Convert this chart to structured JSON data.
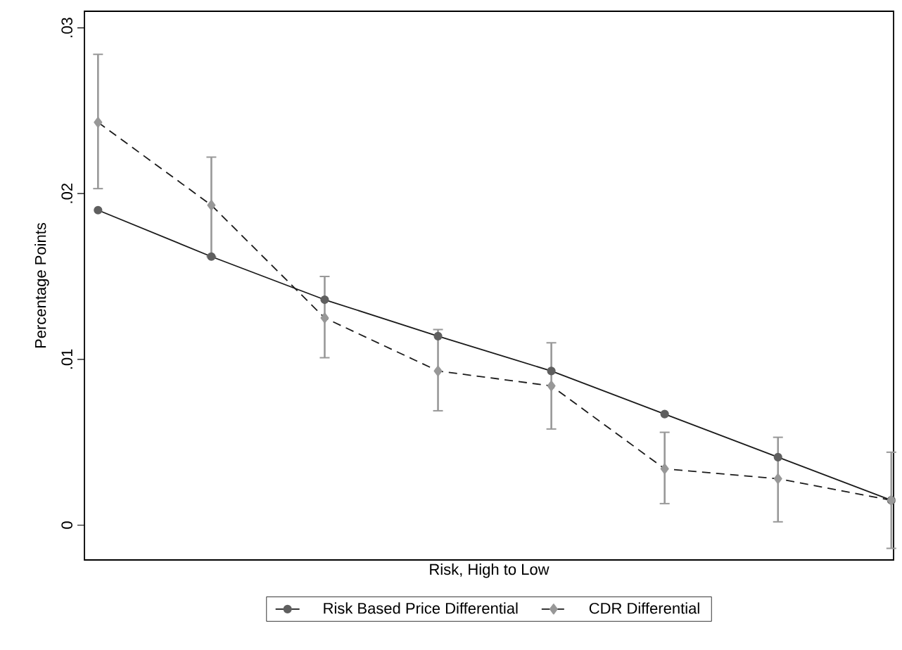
{
  "chart_data": {
    "type": "line",
    "xlabel": "Risk, High to Low",
    "ylabel": "Percentage Points",
    "categories": [
      null,
      null,
      null,
      null,
      null,
      null,
      null,
      null
    ],
    "ylim": [
      -0.0021,
      0.031
    ],
    "yticks": [
      {
        "value": 0,
        "label": "0"
      },
      {
        "value": 0.01,
        "label": ".01"
      },
      {
        "value": 0.02,
        "label": ".02"
      },
      {
        "value": 0.03,
        "label": ".03"
      }
    ],
    "grid": false,
    "legend": "bottom",
    "series": [
      {
        "name": "Risk Based Price Differential",
        "color": "#1a1a1a",
        "marker": "circle",
        "line_style": "solid",
        "values": [
          0.019,
          0.0162,
          0.0136,
          0.0114,
          0.0093,
          0.0067,
          0.0041,
          0.0015
        ]
      },
      {
        "name": "CDR Differential",
        "color": "#1a1a1a",
        "marker": "diamond",
        "line_style": "dashed",
        "values": [
          0.0243,
          0.0193,
          0.0125,
          0.0093,
          0.0084,
          0.0034,
          0.0028,
          0.0015
        ],
        "errors": [
          [
            0.0203,
            0.0284
          ],
          [
            0.0162,
            0.0222
          ],
          [
            0.0101,
            0.015
          ],
          [
            0.0069,
            0.0118
          ],
          [
            0.0058,
            0.011
          ],
          [
            0.0013,
            0.0056
          ],
          [
            0.0002,
            0.0053
          ],
          [
            -0.0014,
            0.0044
          ]
        ]
      }
    ]
  }
}
